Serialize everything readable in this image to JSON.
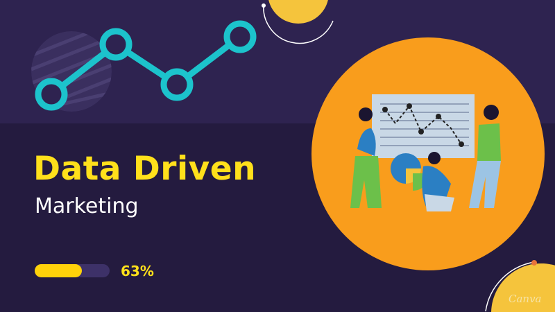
{
  "title": "Data Driven",
  "subtitle": "Marketing",
  "progress": {
    "percent": 63,
    "label": "63%"
  },
  "watermark": "Canva",
  "colors": {
    "accent_yellow": "#ffe01b",
    "teal": "#1cc3cc",
    "orange": "#f99d1c",
    "background": "#2e2350"
  }
}
